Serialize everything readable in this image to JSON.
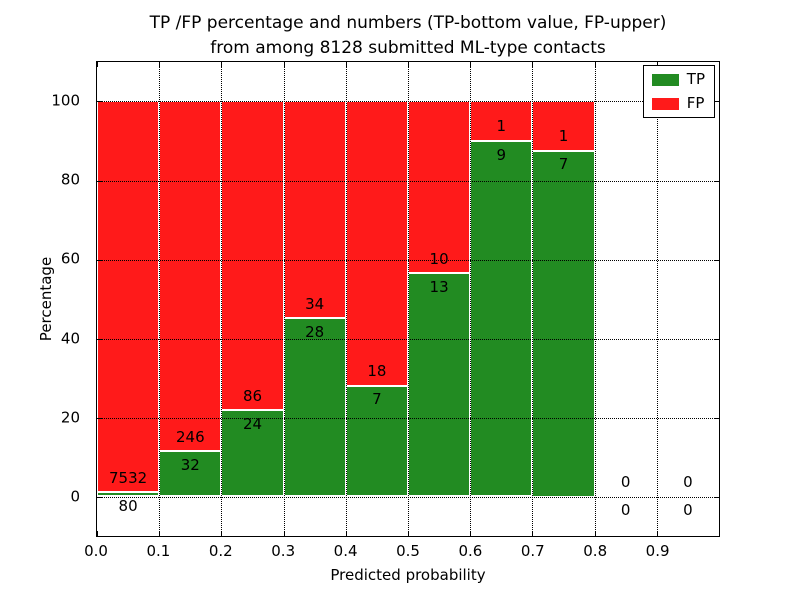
{
  "title": {
    "line1": "TP /FP percentage and numbers (TP-bottom value, FP-upper)",
    "line2": "from among 8128 submitted ML-type contacts"
  },
  "axes": {
    "xlabel": "Predicted probability",
    "ylabel": "Percentage",
    "x_tick_labels": [
      "0.0",
      "0.1",
      "0.2",
      "0.3",
      "0.4",
      "0.5",
      "0.6",
      "0.7",
      "0.8",
      "0.9"
    ],
    "x_tick_values": [
      0,
      0.1,
      0.2,
      0.3,
      0.4,
      0.5,
      0.6,
      0.7,
      0.8,
      0.9
    ],
    "y_tick_labels": [
      "0",
      "20",
      "40",
      "60",
      "80",
      "100"
    ],
    "y_tick_values": [
      0,
      20,
      40,
      60,
      80,
      100
    ],
    "xlim": [
      0,
      1.0
    ],
    "ylim": [
      -10,
      110
    ],
    "grid": true
  },
  "legend": {
    "position": "upper right",
    "items": [
      {
        "label": "TP",
        "color": "#228b22"
      },
      {
        "label": "FP",
        "color": "#ff1a1a"
      }
    ]
  },
  "colors": {
    "tp": "#228b22",
    "fp": "#ff1a1a",
    "bar_edge": "#ffffff",
    "grid": "#000000"
  },
  "chart_data": {
    "type": "bar",
    "stacked": true,
    "normalized_to_percent": true,
    "title": "TP /FP percentage and numbers (TP-bottom value, FP-upper) from among 8128 submitted ML-type contacts",
    "xlabel": "Predicted probability",
    "ylabel": "Percentage",
    "categories": [
      "0.0-0.1",
      "0.1-0.2",
      "0.2-0.3",
      "0.3-0.4",
      "0.4-0.5",
      "0.5-0.6",
      "0.6-0.7",
      "0.7-0.8",
      "0.8-0.9",
      "0.9-1.0"
    ],
    "bin_width": 0.1,
    "total_contacts": 8128,
    "series": [
      {
        "name": "TP",
        "color": "#228b22",
        "counts": [
          80,
          32,
          24,
          28,
          7,
          13,
          9,
          7,
          0,
          0
        ],
        "pct": [
          1.05,
          11.51,
          21.82,
          45.16,
          28.0,
          56.52,
          90.0,
          87.5,
          0,
          0
        ]
      },
      {
        "name": "FP",
        "color": "#ff1a1a",
        "counts": [
          7532,
          246,
          86,
          34,
          18,
          10,
          1,
          1,
          0,
          0
        ],
        "pct": [
          98.95,
          88.49,
          78.18,
          54.84,
          72.0,
          43.48,
          10.0,
          12.5,
          0,
          0
        ]
      }
    ],
    "annotation_note": "TP count printed just below top of green segment, FP count just above it",
    "ylim": [
      -10,
      110
    ],
    "legend_position": "upper right",
    "grid": "dotted, drawn above bars"
  }
}
